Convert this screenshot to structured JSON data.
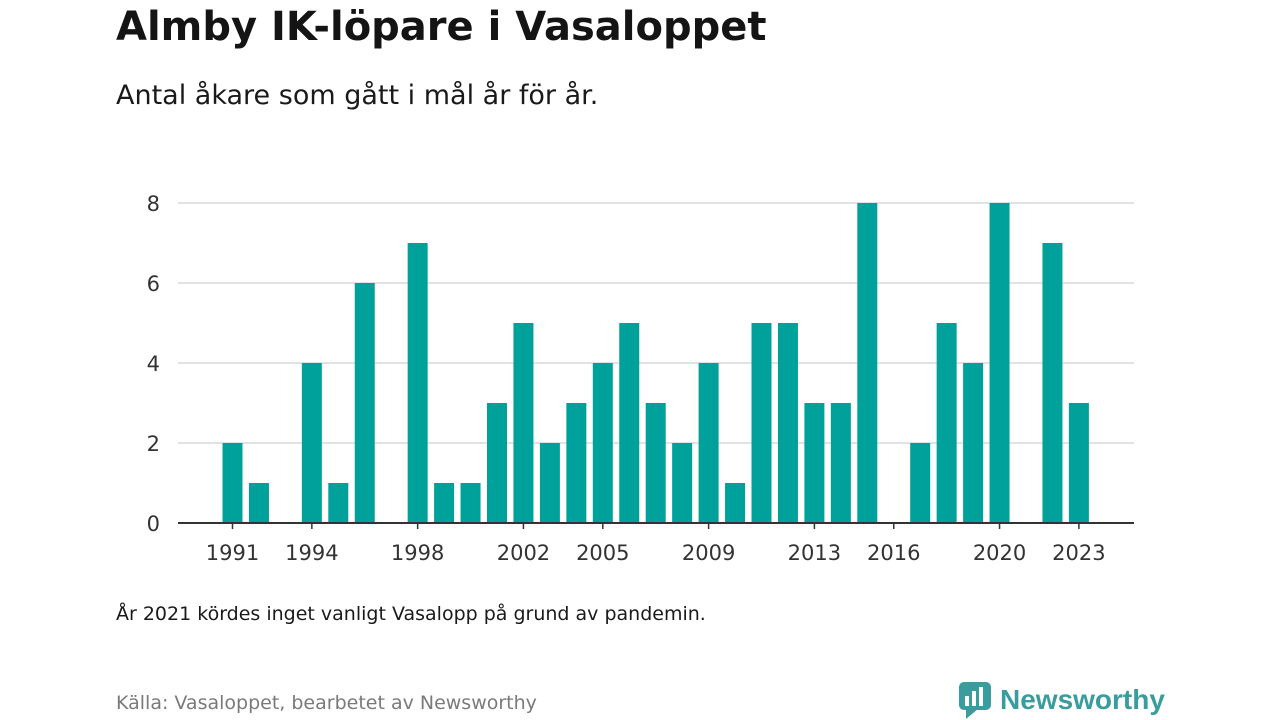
{
  "header": {
    "title": "Almby IK-löpare i Vasaloppet",
    "subtitle": "Antal åkare som gått i mål år för år."
  },
  "footer": {
    "note": "År 2021 kördes inget vanligt Vasalopp på grund av pandemin.",
    "source": "Källa: Vasaloppet, bearbetet av Newsworthy",
    "logo_text": "Newsworthy"
  },
  "colors": {
    "bar": "#00a19a",
    "grid": "#d9d9d9",
    "axis": "#333333",
    "logo": "#3a9d9d"
  },
  "chart_data": {
    "type": "bar",
    "x": [
      1991,
      1992,
      1993,
      1994,
      1995,
      1996,
      1997,
      1998,
      1999,
      2000,
      2001,
      2002,
      2003,
      2004,
      2005,
      2006,
      2007,
      2008,
      2009,
      2010,
      2011,
      2012,
      2013,
      2014,
      2015,
      2016,
      2017,
      2018,
      2019,
      2020,
      2021,
      2022,
      2023
    ],
    "values": [
      2,
      1,
      0,
      4,
      1,
      6,
      0,
      7,
      1,
      1,
      3,
      5,
      2,
      3,
      4,
      5,
      3,
      2,
      4,
      1,
      5,
      5,
      3,
      3,
      8,
      0,
      2,
      5,
      4,
      8,
      0,
      7,
      3
    ],
    "x_ticks": [
      "1991",
      "1994",
      "1998",
      "2002",
      "2005",
      "2009",
      "2013",
      "2016",
      "2020",
      "2023"
    ],
    "y_ticks": [
      "0",
      "2",
      "4",
      "6",
      "8"
    ],
    "ylim": [
      0,
      8
    ],
    "grid": true
  }
}
